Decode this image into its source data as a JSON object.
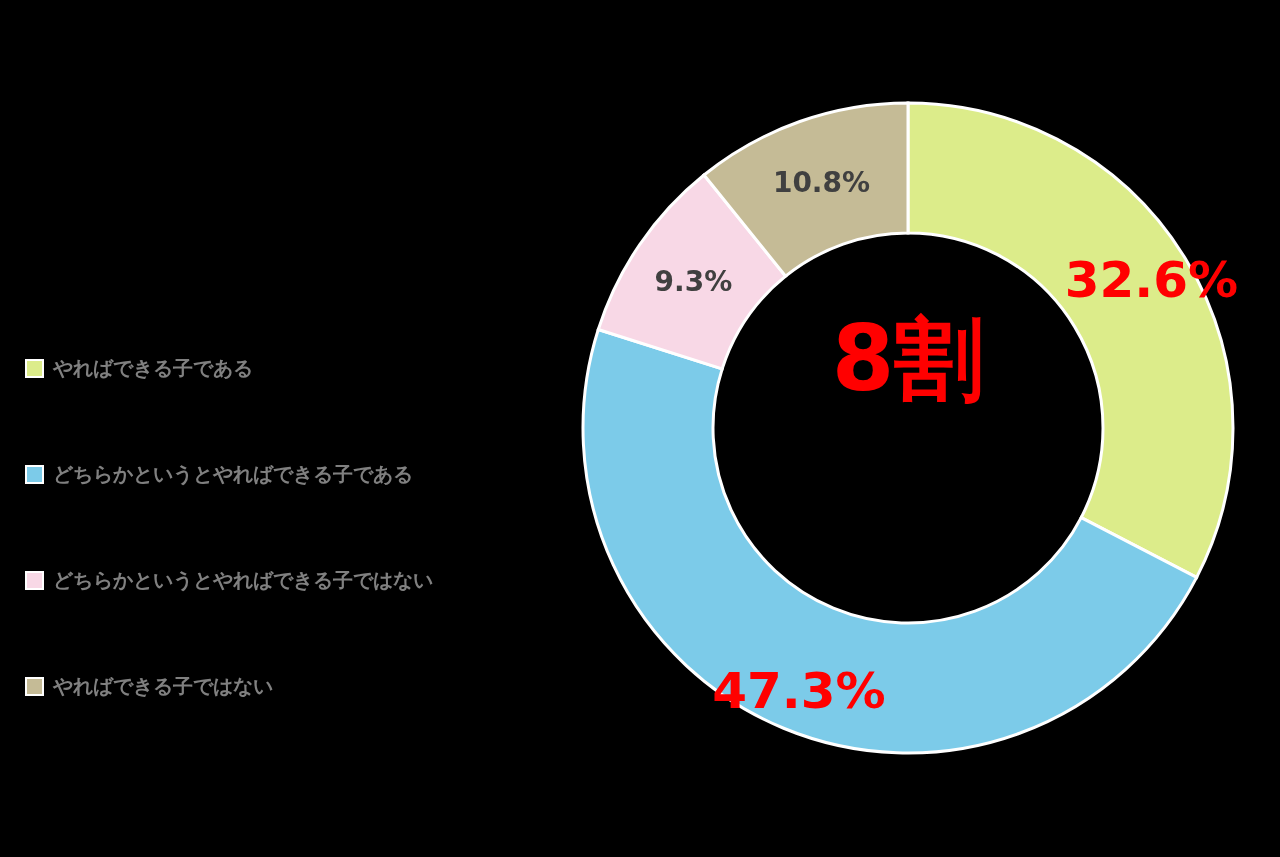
{
  "chart_data": {
    "type": "donut",
    "categories": [
      "やればできる子である",
      "どちらかというとやればできる子である",
      "どちらかというとやればできる子ではない",
      "やればできる子ではない"
    ],
    "values": [
      32.6,
      47.3,
      9.3,
      10.8
    ],
    "colors": [
      "#dcec8a",
      "#7ccbe9",
      "#f8d8e6",
      "#c5bb96"
    ],
    "value_labels": [
      "32.6%",
      "47.3%",
      "9.3%",
      "10.8%"
    ],
    "annotations": [
      "8割"
    ],
    "legend": "left"
  }
}
